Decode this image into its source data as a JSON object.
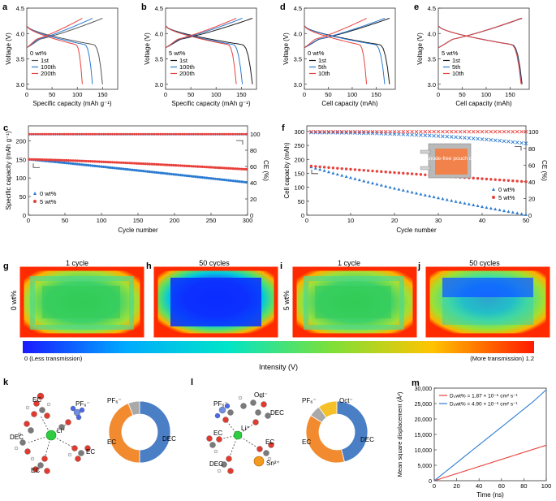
{
  "panels": {
    "a": {
      "letter": "a",
      "legend_title": "0 wt%",
      "xlabel": "Specific capacity (mAh g⁻¹)",
      "ylabel": "Voltage (V)",
      "x_ticks": [
        "0",
        "50",
        "100",
        "150"
      ],
      "y_ticks": [
        "3.0",
        "3.5",
        "4.0",
        "4.5"
      ]
    },
    "b": {
      "letter": "b",
      "legend_title": "5 wt%",
      "xlabel": "Specific capacity (mAh g⁻¹)",
      "ylabel": "Voltage (V)",
      "x_ticks": [
        "0",
        "50",
        "100",
        "150"
      ],
      "y_ticks": [
        "3.0",
        "3.5",
        "4.0",
        "4.5"
      ]
    },
    "d": {
      "letter": "d",
      "legend_title": "0 wt%",
      "xlabel": "Cell capacity (mAh)",
      "ylabel": "Voltage (V)",
      "x_ticks": [
        "0",
        "50",
        "100",
        "150"
      ],
      "y_ticks": [
        "3.0",
        "3.5",
        "4.0",
        "4.5"
      ]
    },
    "e": {
      "letter": "e",
      "legend_title": "5 wt%",
      "xlabel": "Cell capacity (mAh)",
      "ylabel": "Voltage (V)",
      "x_ticks": [
        "0",
        "50",
        "100",
        "150"
      ],
      "y_ticks": [
        "3.0",
        "3.5",
        "4.0",
        "4.5"
      ]
    },
    "c": {
      "letter": "c",
      "xlabel": "Cycle number",
      "ylabel_left": "Specific capacity (mAh g⁻¹)",
      "ylabel_right": "CE (%)",
      "x_ticks": [
        "0",
        "50",
        "100",
        "150",
        "200",
        "250",
        "300"
      ],
      "y_left_ticks": [
        "0",
        "50",
        "100",
        "150",
        "200"
      ],
      "y_right_ticks": [
        "0",
        "20",
        "40",
        "60",
        "80",
        "100"
      ]
    },
    "f": {
      "letter": "f",
      "xlabel": "Cycle number",
      "ylabel_left": "Cell capacity (mAh)",
      "ylabel_right": "CE (%)",
      "x_ticks": [
        "0",
        "10",
        "20",
        "30",
        "40",
        "50"
      ],
      "y_left_ticks": [
        "0",
        "50",
        "100",
        "150",
        "200",
        "250",
        "300"
      ],
      "y_right_ticks": [
        "0",
        "20",
        "40",
        "60",
        "80",
        "100"
      ],
      "inset_label": "Anode-free pouch cell"
    }
  },
  "legends": {
    "ad": {
      "l1": "1st",
      "l2": "100th",
      "l3": "200th"
    },
    "be": {
      "l1": "1st",
      "l2": "5th",
      "l3": "10th"
    },
    "cf": {
      "l1": "0 wt%",
      "l2": "5 wt%"
    }
  },
  "imaging": {
    "row_label_top": "0 wt%",
    "row_label_bottom": "5 wt%",
    "titles": {
      "g": "1 cycle",
      "h": "50 cycles",
      "i": "1 cycle",
      "j": "50 cycles"
    },
    "letters": {
      "g": "g",
      "h": "h",
      "i": "i",
      "j": "j"
    },
    "colorbar_min_label": "0 (Less transmission)",
    "colorbar_max_label": "(More transmission) 1.2",
    "colorbar_title": "Intensity (V)"
  },
  "solvation": {
    "k": {
      "letter": "k",
      "labels": {
        "ec1": "EC",
        "ec2": "EC",
        "ec3": "EC",
        "dec": "DEC",
        "pf6": "PF₆⁻",
        "li": "Li⁺"
      },
      "donut_labels": {
        "pf6": "PF₆⁻",
        "ec": "EC",
        "dec": "DEC"
      }
    },
    "l": {
      "letter": "l",
      "labels": {
        "pf6": "PF₆⁻",
        "oct": "Oct⁻",
        "dec1": "DEC",
        "dec2": "DEC",
        "ec1": "EC",
        "ec2": "EC",
        "li": "Li⁺",
        "sn": "Sn²⁺"
      },
      "donut_labels": {
        "pf6": "PF₆⁻",
        "oct": "Oct⁻",
        "ec": "EC",
        "dec": "DEC"
      }
    }
  },
  "panel_m": {
    "letter": "m",
    "legend": {
      "red": "D₀wt% = 1.87 × 10⁻⁶ cm² s⁻¹",
      "blue": "D₅wt% = 4.90 × 10⁻⁶ cm² s⁻¹"
    }
  },
  "colors": {
    "black": "#1a1a1a",
    "blue": "#2b7bd1",
    "red": "#e8413c",
    "gray": "#999999",
    "orange": "#f28b30",
    "donut_blue": "#4a7fc6",
    "donut_gray": "#a9a9a9",
    "donut_yellow": "#f5c028",
    "green": "#2ecc40"
  },
  "chart_data": [
    {
      "id": "a",
      "type": "line",
      "xlabel": "Specific capacity (mAh g⁻¹)",
      "ylabel": "Voltage (V)",
      "xlim": [
        0,
        180
      ],
      "ylim": [
        2.9,
        4.5
      ],
      "series": [
        {
          "name": "1st",
          "color": "#555555",
          "cap": 150
        },
        {
          "name": "100th",
          "color": "#2b7bd1",
          "cap": 130
        },
        {
          "name": "200th",
          "color": "#e8413c",
          "cap": 110
        }
      ]
    },
    {
      "id": "b",
      "type": "line",
      "xlabel": "Specific capacity (mAh g⁻¹)",
      "ylabel": "Voltage (V)",
      "xlim": [
        0,
        180
      ],
      "ylim": [
        2.9,
        4.5
      ],
      "series": [
        {
          "name": "1st",
          "color": "#1a1a1a",
          "cap": 172
        },
        {
          "name": "100th",
          "color": "#2b7bd1",
          "cap": 152
        },
        {
          "name": "200th",
          "color": "#e8413c",
          "cap": 140
        }
      ]
    },
    {
      "id": "d",
      "type": "line",
      "xlabel": "Cell capacity (mAh)",
      "ylabel": "Voltage (V)",
      "xlim": [
        0,
        190
      ],
      "ylim": [
        2.9,
        4.5
      ],
      "series": [
        {
          "name": "1st",
          "color": "#1a1a1a",
          "cap": 178
        },
        {
          "name": "5th",
          "color": "#2b7bd1",
          "cap": 168
        },
        {
          "name": "10th",
          "color": "#e8413c",
          "cap": 130
        }
      ]
    },
    {
      "id": "e",
      "type": "line",
      "xlabel": "Cell capacity (mAh)",
      "ylabel": "Voltage (V)",
      "xlim": [
        0,
        190
      ],
      "ylim": [
        2.9,
        4.5
      ],
      "series": [
        {
          "name": "1st",
          "color": "#1a1a1a",
          "cap": 175
        },
        {
          "name": "5th",
          "color": "#2b7bd1",
          "cap": 174
        },
        {
          "name": "10th",
          "color": "#e8413c",
          "cap": 173
        }
      ]
    },
    {
      "id": "c",
      "type": "scatter",
      "xlabel": "Cycle number",
      "ylabel": "Specific capacity (mAh g⁻¹)",
      "y2label": "CE (%)",
      "xlim": [
        0,
        300
      ],
      "ylim": [
        0,
        240
      ],
      "y2lim": [
        0,
        110
      ],
      "series": [
        {
          "name": "0 wt%",
          "color": "#2b7bd1",
          "start": 150,
          "end": 88,
          "ce": 99.6
        },
        {
          "name": "5 wt%",
          "color": "#e8413c",
          "start": 150,
          "end": 123,
          "ce": 99.9
        }
      ]
    },
    {
      "id": "f",
      "type": "scatter",
      "xlabel": "Cycle number",
      "ylabel": "Cell capacity (mAh)",
      "y2label": "CE (%)",
      "xlim": [
        0,
        50
      ],
      "ylim": [
        0,
        320
      ],
      "y2lim": [
        0,
        107
      ],
      "series": [
        {
          "name": "0 wt%",
          "color": "#2b7bd1",
          "start": 178,
          "end": 2,
          "ce_start": 99,
          "ce_end": 86
        },
        {
          "name": "5 wt%",
          "color": "#e8413c",
          "start": 178,
          "end": 120,
          "ce_start": 100,
          "ce_end": 100
        }
      ]
    },
    {
      "id": "k_donut",
      "type": "pie",
      "labels": [
        "DEC",
        "EC",
        "PF₆⁻"
      ],
      "values": [
        50,
        44,
        6
      ]
    },
    {
      "id": "l_donut",
      "type": "pie",
      "labels": [
        "DEC",
        "EC",
        "PF₆⁻",
        "Oct⁻"
      ],
      "values": [
        46,
        38,
        6,
        10
      ]
    },
    {
      "id": "m",
      "type": "line",
      "xlabel": "Time (ns)",
      "ylabel": "Mean square displacement (Å²)",
      "xlim": [
        0,
        100
      ],
      "ylim": [
        0,
        30000
      ],
      "x_ticks": [
        "0",
        "20",
        "40",
        "60",
        "80",
        "100"
      ],
      "y_ticks": [
        "0",
        "5,000",
        "10,000",
        "15,000",
        "20,000",
        "25,000",
        "30,000"
      ],
      "series": [
        {
          "name": "0 wt%",
          "color": "#e8413c",
          "values_at_100": 11500
        },
        {
          "name": "5 wt%",
          "color": "#2b7bd1",
          "values_at_100": 29000
        }
      ]
    }
  ]
}
